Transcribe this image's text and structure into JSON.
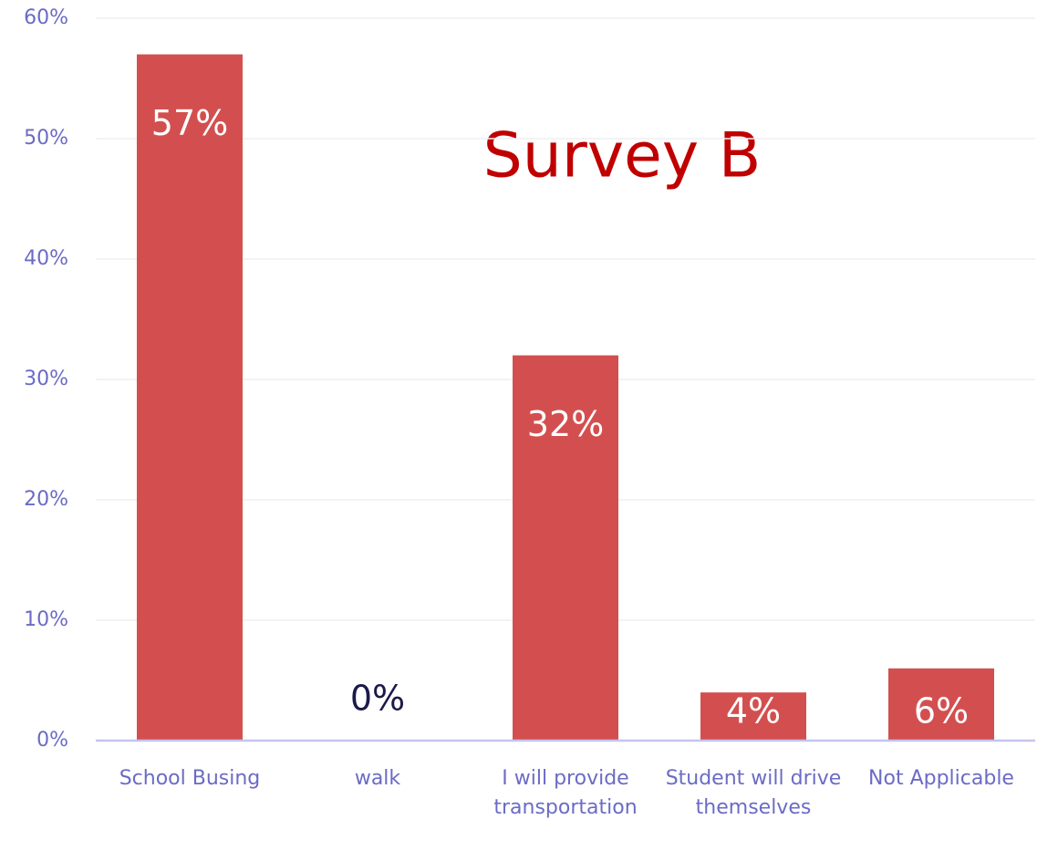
{
  "chart_data": {
    "type": "bar",
    "title": "Survey B",
    "categories": [
      "School Busing",
      "walk",
      "I will provide transportation",
      "Student will drive themselves",
      "Not Applicable"
    ],
    "values": [
      57,
      0,
      32,
      4,
      6
    ],
    "value_labels": [
      "57%",
      "0%",
      "32%",
      "4%",
      "6%"
    ],
    "color": "#d34f4f",
    "ylim": [
      0,
      60
    ],
    "yticks": [
      {
        "value": 0,
        "label": "0%"
      },
      {
        "value": 10,
        "label": "10%"
      },
      {
        "value": 20,
        "label": "20%"
      },
      {
        "value": 30,
        "label": "30%"
      },
      {
        "value": 40,
        "label": "40%"
      },
      {
        "value": 50,
        "label": "50%"
      },
      {
        "value": 60,
        "label": "60%"
      }
    ],
    "grid": true
  }
}
